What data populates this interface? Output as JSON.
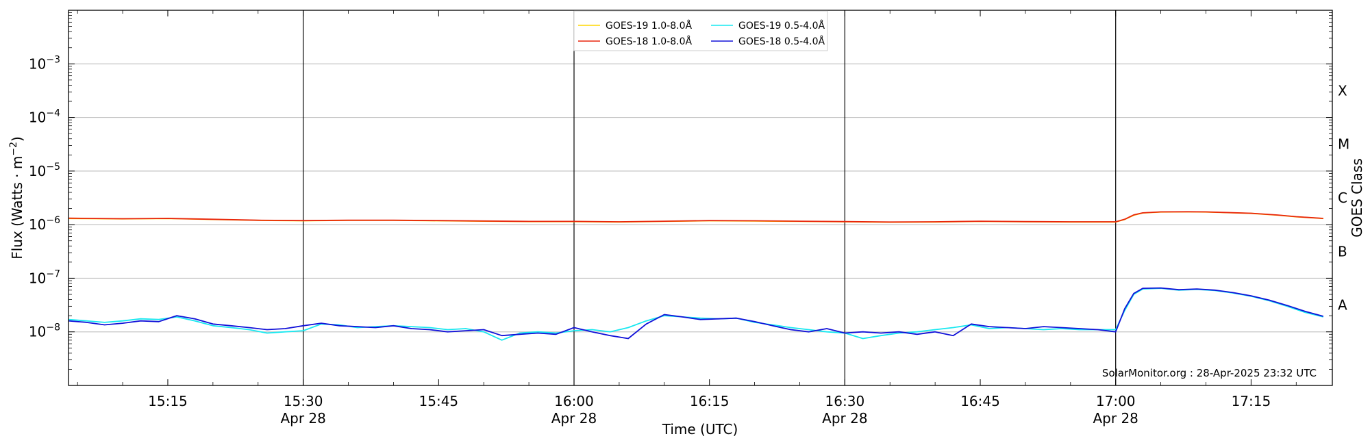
{
  "chart_data": {
    "type": "line",
    "title": "",
    "xlabel": "Time (UTC)",
    "ylabel_prefix": "Flux (Watts · m",
    "ylabel_sup": "−2",
    "ylabel_suffix": ")",
    "right_axis_label": "GOES Class",
    "credit": "SolarMonitor.org : 28-Apr-2025 23:32 UTC",
    "y_scale": "log",
    "ylim": [
      1e-09,
      0.01
    ],
    "xlim": [
      "15:04",
      "17:24"
    ],
    "grid": "horizontal at major y ticks",
    "legend_position": "top-center",
    "y_ticks": [
      {
        "value": 1e-08,
        "base": "10",
        "exp": "−8"
      },
      {
        "value": 1e-07,
        "base": "10",
        "exp": "−7"
      },
      {
        "value": 1e-06,
        "base": "10",
        "exp": "−6"
      },
      {
        "value": 1e-05,
        "base": "10",
        "exp": "−5"
      },
      {
        "value": 0.0001,
        "base": "10",
        "exp": "−4"
      },
      {
        "value": 0.001,
        "base": "10",
        "exp": "−3"
      }
    ],
    "goes_classes": [
      {
        "label": "A",
        "center": 3.16e-08
      },
      {
        "label": "B",
        "center": 3.16e-07
      },
      {
        "label": "C",
        "center": 3.16e-06
      },
      {
        "label": "M",
        "center": 3.16e-05
      },
      {
        "label": "X",
        "center": 0.000316
      }
    ],
    "x_ticks": [
      {
        "time": "15:15",
        "label": "15:15",
        "date": ""
      },
      {
        "time": "15:30",
        "label": "15:30",
        "date": "Apr 28"
      },
      {
        "time": "15:45",
        "label": "15:45",
        "date": ""
      },
      {
        "time": "16:00",
        "label": "16:00",
        "date": "Apr 28"
      },
      {
        "time": "16:15",
        "label": "16:15",
        "date": ""
      },
      {
        "time": "16:30",
        "label": "16:30",
        "date": "Apr 28"
      },
      {
        "time": "16:45",
        "label": "16:45",
        "date": ""
      },
      {
        "time": "17:00",
        "label": "17:00",
        "date": "Apr 28"
      },
      {
        "time": "17:15",
        "label": "17:15",
        "date": ""
      }
    ],
    "vertical_lines": [
      "15:30",
      "16:00",
      "16:30",
      "17:00"
    ],
    "series": [
      {
        "name": "GOES-19 1.0-8.0Å",
        "color": "#ffd700",
        "x": [
          "15:04",
          "15:10",
          "15:15",
          "15:20",
          "15:25",
          "15:30",
          "15:35",
          "15:40",
          "15:45",
          "15:50",
          "15:55",
          "16:00",
          "16:05",
          "16:10",
          "16:15",
          "16:20",
          "16:25",
          "16:30",
          "16:35",
          "16:40",
          "16:45",
          "16:50",
          "16:55",
          "17:00",
          "17:01",
          "17:02",
          "17:03",
          "17:05",
          "17:08",
          "17:10",
          "17:12",
          "17:15",
          "17:18",
          "17:20",
          "17:23"
        ],
        "y": [
          1.3e-06,
          1.28e-06,
          1.3e-06,
          1.25e-06,
          1.2e-06,
          1.18e-06,
          1.2e-06,
          1.2e-06,
          1.18e-06,
          1.16e-06,
          1.14e-06,
          1.14e-06,
          1.12e-06,
          1.15e-06,
          1.18e-06,
          1.17e-06,
          1.15e-06,
          1.13e-06,
          1.11e-06,
          1.12e-06,
          1.15e-06,
          1.13e-06,
          1.12e-06,
          1.12e-06,
          1.25e-06,
          1.5e-06,
          1.65e-06,
          1.72e-06,
          1.73e-06,
          1.72e-06,
          1.68e-06,
          1.62e-06,
          1.5e-06,
          1.4e-06,
          1.3e-06
        ]
      },
      {
        "name": "GOES-18 1.0-8.0Å",
        "color": "#e8250c",
        "x": [
          "15:04",
          "15:10",
          "15:15",
          "15:20",
          "15:25",
          "15:30",
          "15:35",
          "15:40",
          "15:45",
          "15:50",
          "15:55",
          "16:00",
          "16:05",
          "16:10",
          "16:15",
          "16:20",
          "16:25",
          "16:30",
          "16:35",
          "16:40",
          "16:45",
          "16:50",
          "16:55",
          "17:00",
          "17:01",
          "17:02",
          "17:03",
          "17:05",
          "17:08",
          "17:10",
          "17:12",
          "17:15",
          "17:18",
          "17:20",
          "17:23"
        ],
        "y": [
          1.32e-06,
          1.29e-06,
          1.31e-06,
          1.26e-06,
          1.21e-06,
          1.19e-06,
          1.21e-06,
          1.21e-06,
          1.19e-06,
          1.17e-06,
          1.15e-06,
          1.15e-06,
          1.13e-06,
          1.16e-06,
          1.19e-06,
          1.18e-06,
          1.16e-06,
          1.14e-06,
          1.12e-06,
          1.13e-06,
          1.16e-06,
          1.14e-06,
          1.13e-06,
          1.13e-06,
          1.26e-06,
          1.52e-06,
          1.66e-06,
          1.73e-06,
          1.74e-06,
          1.73e-06,
          1.69e-06,
          1.63e-06,
          1.51e-06,
          1.41e-06,
          1.31e-06
        ]
      },
      {
        "name": "GOES-19 0.5-4.0Å",
        "color": "#17e8f0",
        "x": [
          "15:04",
          "15:06",
          "15:08",
          "15:10",
          "15:12",
          "15:14",
          "15:16",
          "15:18",
          "15:20",
          "15:22",
          "15:24",
          "15:26",
          "15:28",
          "15:30",
          "15:32",
          "15:34",
          "15:36",
          "15:38",
          "15:40",
          "15:42",
          "15:44",
          "15:46",
          "15:48",
          "15:50",
          "15:52",
          "15:54",
          "15:56",
          "15:58",
          "16:00",
          "16:02",
          "16:04",
          "16:06",
          "16:08",
          "16:10",
          "16:12",
          "16:14",
          "16:16",
          "16:18",
          "16:20",
          "16:22",
          "16:24",
          "16:26",
          "16:28",
          "16:30",
          "16:32",
          "16:34",
          "16:36",
          "16:38",
          "16:40",
          "16:42",
          "16:44",
          "16:46",
          "16:48",
          "16:50",
          "16:52",
          "16:54",
          "16:56",
          "16:58",
          "17:00",
          "17:01",
          "17:02",
          "17:03",
          "17:05",
          "17:07",
          "17:09",
          "17:11",
          "17:13",
          "17:15",
          "17:17",
          "17:19",
          "17:21",
          "17:23"
        ],
        "y": [
          1.7e-08,
          1.6e-08,
          1.5e-08,
          1.6e-08,
          1.75e-08,
          1.7e-08,
          1.9e-08,
          1.6e-08,
          1.3e-08,
          1.2e-08,
          1.1e-08,
          9.5e-09,
          1e-08,
          1.05e-08,
          1.4e-08,
          1.35e-08,
          1.2e-08,
          1.25e-08,
          1.3e-08,
          1.25e-08,
          1.2e-08,
          1.1e-08,
          1.15e-08,
          1e-08,
          7e-09,
          9.5e-09,
          1e-08,
          9.5e-09,
          1.05e-08,
          1.1e-08,
          1e-08,
          1.2e-08,
          1.6e-08,
          2e-08,
          1.9e-08,
          1.8e-08,
          1.75e-08,
          1.8e-08,
          1.5e-08,
          1.35e-08,
          1.2e-08,
          1.1e-08,
          1e-08,
          9.5e-09,
          7.5e-09,
          8.5e-09,
          9.5e-09,
          1e-08,
          1.1e-08,
          1.2e-08,
          1.35e-08,
          1.15e-08,
          1.2e-08,
          1.15e-08,
          1.1e-08,
          1.15e-08,
          1.1e-08,
          1.1e-08,
          1.1e-08,
          2.5e-08,
          5e-08,
          6.3e-08,
          6.5e-08,
          6e-08,
          6.2e-08,
          5.9e-08,
          5.3e-08,
          4.6e-08,
          3.8e-08,
          3e-08,
          2.3e-08,
          1.9e-08
        ]
      },
      {
        "name": "GOES-18 0.5-4.0Å",
        "color": "#1010d8",
        "x": [
          "15:04",
          "15:06",
          "15:08",
          "15:10",
          "15:12",
          "15:14",
          "15:16",
          "15:18",
          "15:20",
          "15:22",
          "15:24",
          "15:26",
          "15:28",
          "15:30",
          "15:32",
          "15:34",
          "15:36",
          "15:38",
          "15:40",
          "15:42",
          "15:44",
          "15:46",
          "15:48",
          "15:50",
          "15:52",
          "15:54",
          "15:56",
          "15:58",
          "16:00",
          "16:02",
          "16:04",
          "16:06",
          "16:08",
          "16:10",
          "16:12",
          "16:14",
          "16:16",
          "16:18",
          "16:20",
          "16:22",
          "16:24",
          "16:26",
          "16:28",
          "16:30",
          "16:32",
          "16:34",
          "16:36",
          "16:38",
          "16:40",
          "16:42",
          "16:44",
          "16:46",
          "16:48",
          "16:50",
          "16:52",
          "16:54",
          "16:56",
          "16:58",
          "17:00",
          "17:01",
          "17:02",
          "17:03",
          "17:05",
          "17:07",
          "17:09",
          "17:11",
          "17:13",
          "17:15",
          "17:17",
          "17:19",
          "17:21",
          "17:23"
        ],
        "y": [
          1.6e-08,
          1.5e-08,
          1.35e-08,
          1.45e-08,
          1.6e-08,
          1.55e-08,
          2e-08,
          1.75e-08,
          1.4e-08,
          1.3e-08,
          1.2e-08,
          1.1e-08,
          1.15e-08,
          1.3e-08,
          1.45e-08,
          1.3e-08,
          1.25e-08,
          1.2e-08,
          1.3e-08,
          1.15e-08,
          1.1e-08,
          1e-08,
          1.05e-08,
          1.1e-08,
          8.5e-09,
          9e-09,
          9.5e-09,
          9e-09,
          1.2e-08,
          1e-08,
          8.5e-09,
          7.5e-09,
          1.4e-08,
          2.1e-08,
          1.9e-08,
          1.7e-08,
          1.75e-08,
          1.8e-08,
          1.55e-08,
          1.3e-08,
          1.1e-08,
          1e-08,
          1.15e-08,
          9.5e-09,
          1e-08,
          9.5e-09,
          1e-08,
          9e-09,
          1e-08,
          8.5e-09,
          1.4e-08,
          1.25e-08,
          1.2e-08,
          1.15e-08,
          1.25e-08,
          1.2e-08,
          1.15e-08,
          1.1e-08,
          1e-08,
          2.7e-08,
          5.2e-08,
          6.5e-08,
          6.6e-08,
          6.1e-08,
          6.3e-08,
          6e-08,
          5.4e-08,
          4.7e-08,
          3.9e-08,
          3.1e-08,
          2.4e-08,
          1.95e-08
        ]
      }
    ]
  }
}
